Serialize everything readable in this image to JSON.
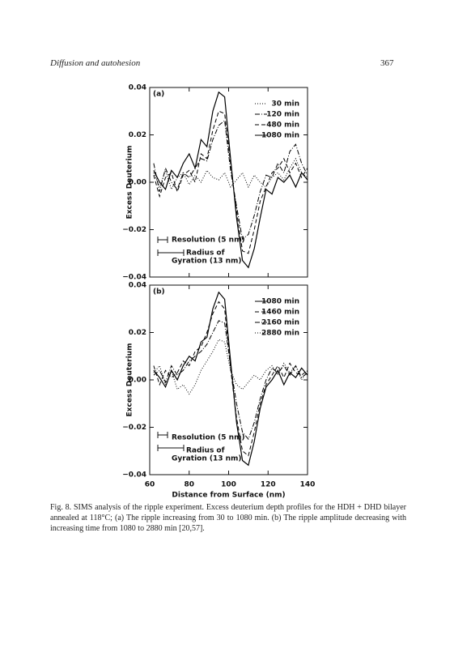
{
  "header": {
    "title": "Diffusion and autohesion",
    "page": "367"
  },
  "chart_data": [
    {
      "type": "line",
      "panel": "(a)",
      "ylabel": "Excess Deuterium",
      "x": [
        62,
        65,
        68,
        71,
        74,
        77,
        80,
        83,
        86,
        89,
        92,
        95,
        98,
        101,
        104,
        107,
        110,
        113,
        116,
        119,
        122,
        125,
        128,
        131,
        134,
        137,
        140
      ],
      "series": [
        {
          "name": "30 min",
          "color": "#000000",
          "dash": "dotted",
          "values": [
            0.004,
            -0.002,
            0.005,
            -0.003,
            0.002,
            0.004,
            -0.001,
            0.003,
            0.0,
            0.005,
            0.002,
            0.001,
            0.004,
            -0.002,
            0.001,
            0.004,
            -0.002,
            0.003,
            0.0,
            -0.002,
            0.002,
            0.004,
            0.001,
            0.006,
            0.01,
            0.004,
            0.002
          ]
        },
        {
          "name": "120 min",
          "color": "#000000",
          "dash": "dashdot",
          "values": [
            0.008,
            -0.004,
            0.006,
            0.0,
            -0.003,
            0.004,
            0.002,
            0.006,
            0.01,
            0.009,
            0.018,
            0.024,
            0.026,
            0.005,
            -0.01,
            -0.024,
            -0.022,
            -0.014,
            -0.004,
            0.003,
            0.002,
            0.008,
            0.004,
            0.013,
            0.016,
            0.008,
            0.003
          ]
        },
        {
          "name": "480 min",
          "color": "#000000",
          "dash": "dashed",
          "values": [
            0.003,
            -0.006,
            0.002,
            0.004,
            -0.004,
            0.003,
            0.005,
            0.0,
            0.012,
            0.01,
            0.022,
            0.03,
            0.029,
            0.008,
            -0.012,
            -0.029,
            -0.03,
            -0.02,
            -0.008,
            -0.002,
            0.004,
            0.006,
            0.01,
            0.004,
            0.008,
            0.002,
            0.006
          ]
        },
        {
          "name": "1080 min",
          "color": "#000000",
          "dash": "solid",
          "values": [
            0.005,
            0.0,
            -0.003,
            0.005,
            0.002,
            0.008,
            0.012,
            0.006,
            0.018,
            0.015,
            0.03,
            0.038,
            0.036,
            0.01,
            -0.015,
            -0.033,
            -0.036,
            -0.028,
            -0.015,
            -0.003,
            -0.005,
            0.002,
            0.0,
            0.003,
            -0.002,
            0.004,
            0.001
          ]
        }
      ],
      "xlim": [
        60,
        140
      ],
      "ylim": [
        -0.04,
        0.04
      ],
      "yticks": [
        {
          "value": -0.04,
          "label": "−0.04"
        },
        {
          "value": -0.02,
          "label": "−0.02"
        },
        {
          "value": 0,
          "label": "0.00"
        },
        0.02,
        0.04
      ],
      "annotations": [
        "Resolution (5 nm)",
        "Radius of",
        "Gyration (13 nm)"
      ]
    },
    {
      "type": "line",
      "panel": "(b)",
      "ylabel": "Excess Deuterium",
      "xlabel": "Distance from Surface (nm)",
      "x": [
        62,
        65,
        68,
        71,
        74,
        77,
        80,
        83,
        86,
        89,
        92,
        95,
        98,
        101,
        104,
        107,
        110,
        113,
        116,
        119,
        122,
        125,
        128,
        131,
        134,
        137,
        140
      ],
      "series": [
        {
          "name": "1080 min",
          "color": "#000000",
          "dash": "solid",
          "values": [
            0.004,
            0.001,
            -0.003,
            0.004,
            0.0,
            0.006,
            0.01,
            0.008,
            0.016,
            0.018,
            0.03,
            0.037,
            0.034,
            0.008,
            -0.018,
            -0.034,
            -0.036,
            -0.026,
            -0.012,
            -0.003,
            0.0,
            0.004,
            -0.002,
            0.003,
            0.001,
            0.005,
            0.002
          ]
        },
        {
          "name": "1460 min",
          "color": "#000000",
          "dash": "dashed",
          "values": [
            0.006,
            -0.002,
            0.004,
            0.001,
            0.003,
            0.008,
            0.006,
            0.012,
            0.014,
            0.02,
            0.028,
            0.033,
            0.03,
            0.005,
            -0.016,
            -0.03,
            -0.032,
            -0.022,
            -0.01,
            -0.002,
            0.002,
            0.006,
            0.001,
            0.007,
            0.003,
            0.002,
            0.004
          ]
        },
        {
          "name": "2160 min",
          "color": "#000000",
          "dash": "dashdot",
          "values": [
            0.002,
            0.004,
            -0.001,
            0.006,
            0.002,
            0.004,
            0.008,
            0.01,
            0.012,
            0.015,
            0.02,
            0.025,
            0.024,
            0.006,
            -0.01,
            -0.022,
            -0.025,
            -0.018,
            -0.008,
            0.0,
            0.005,
            0.003,
            0.006,
            0.002,
            0.006,
            0.001,
            0.003
          ]
        },
        {
          "name": "2880 min",
          "color": "#000000",
          "dash": "dotted",
          "values": [
            0.003,
            0.006,
            -0.002,
            0.004,
            -0.004,
            -0.002,
            -0.006,
            -0.002,
            0.004,
            0.008,
            0.012,
            0.017,
            0.016,
            0.004,
            -0.002,
            -0.004,
            -0.001,
            0.002,
            0.0,
            0.004,
            0.006,
            0.002,
            0.007,
            0.003,
            0.006,
            0.0,
            0.004
          ]
        }
      ],
      "xlim": [
        60,
        140
      ],
      "xticks": [
        60,
        80,
        100,
        120,
        140
      ],
      "ylim": [
        -0.04,
        0.04
      ],
      "yticks": [
        {
          "value": -0.04,
          "label": "−0.04"
        },
        {
          "value": -0.02,
          "label": "−0.02"
        },
        {
          "value": 0,
          "label": "0.00"
        },
        0.02,
        0.04
      ],
      "annotations": [
        "Resolution (5 nm)",
        "Radius of",
        "Gyration (13 nm)"
      ]
    }
  ],
  "caption": "Fig. 8. SIMS analysis of the ripple experiment. Excess deuterium depth profiles for the HDH + DHD bilayer annealed at 118°C; (a) The ripple increasing from 30 to 1080 min. (b) The ripple amplitude decreasing with increasing time from 1080 to 2880 min [20,57]."
}
